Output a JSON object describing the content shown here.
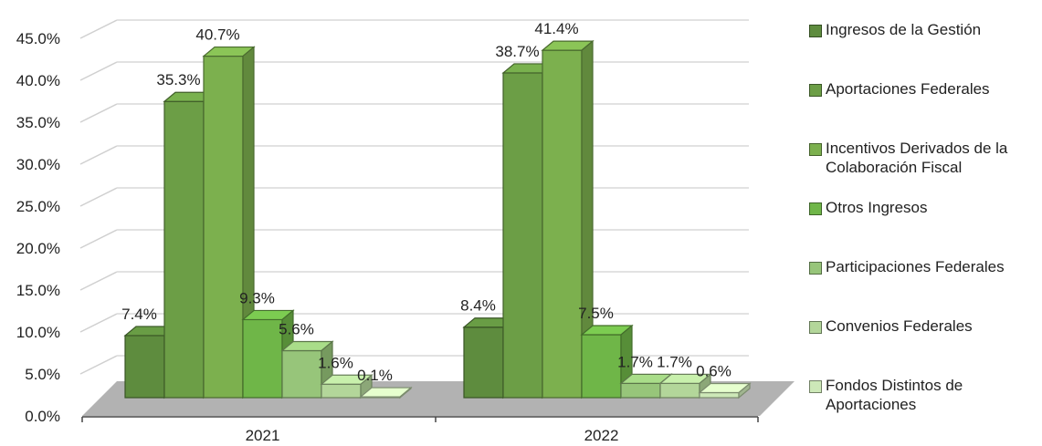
{
  "chart_data": {
    "type": "bar",
    "categories": [
      "2021",
      "2022"
    ],
    "series": [
      {
        "name": "Ingresos de la Gestión",
        "values": [
          7.4,
          8.4
        ],
        "color": "#5e8c3e"
      },
      {
        "name": "Aportaciones Federales",
        "values": [
          35.3,
          38.7
        ],
        "color": "#6c9e46"
      },
      {
        "name": "Incentivos Derivados de la Colaboración Fiscal",
        "values": [
          40.7,
          41.4
        ],
        "color": "#7cb04e"
      },
      {
        "name": "Otros Ingresos",
        "values": [
          9.3,
          7.5
        ],
        "color": "#6fb648"
      },
      {
        "name": "Participaciones Federales",
        "values": [
          5.6,
          1.7
        ],
        "color": "#97c57a"
      },
      {
        "name": "Convenios Federales",
        "values": [
          1.6,
          1.7
        ],
        "color": "#b3d69a"
      },
      {
        "name": "Fondos Distintos de Aportaciones",
        "values": [
          0.1,
          0.6
        ],
        "color": "#cde8b8"
      }
    ],
    "data_labels": [
      [
        "7.4%",
        "35.3%",
        "40.7%",
        "9.3%",
        "5.6%",
        "1.6%",
        "0.1%"
      ],
      [
        "8.4%",
        "38.7%",
        "41.4%",
        "7.5%",
        "1.7%",
        "1.7%",
        "0.6%"
      ]
    ],
    "y_ticks": [
      "0.0%",
      "5.0%",
      "10.0%",
      "15.0%",
      "20.0%",
      "25.0%",
      "30.0%",
      "35.0%",
      "40.0%",
      "45.0%"
    ],
    "ylim": [
      0,
      45
    ],
    "grid": true,
    "legend_position": "right"
  }
}
